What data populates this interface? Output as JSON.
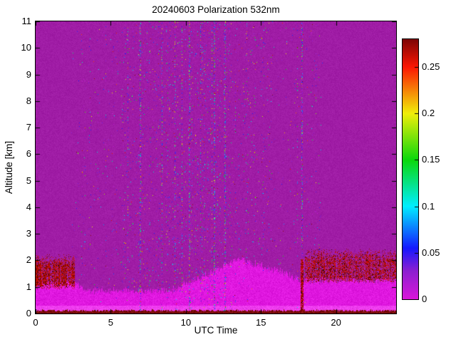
{
  "chart_data": {
    "type": "heatmap",
    "title": "20240603 Polarization 532nm",
    "xlabel": "UTC Time",
    "ylabel": "Altitude [km]",
    "xlim": [
      0,
      24
    ],
    "ylim": [
      0,
      11
    ],
    "xticks": [
      0,
      5,
      10,
      15,
      20
    ],
    "yticks": [
      0,
      1,
      2,
      3,
      4,
      5,
      6,
      7,
      8,
      9,
      10,
      11
    ],
    "grid": false,
    "colorbar": {
      "position": "right",
      "range": [
        0,
        0.28
      ],
      "ticks": [
        0,
        0.05,
        0.1,
        0.15,
        0.2,
        0.25
      ],
      "stops": [
        {
          "v": 0.0,
          "color": "#d916d9"
        },
        {
          "v": 0.03,
          "color": "#8e1fd0"
        },
        {
          "v": 0.055,
          "color": "#1518ff"
        },
        {
          "v": 0.1,
          "color": "#00eeff"
        },
        {
          "v": 0.15,
          "color": "#0bd80b"
        },
        {
          "v": 0.2,
          "color": "#f0ee0a"
        },
        {
          "v": 0.25,
          "color": "#fb1703"
        },
        {
          "v": 0.28,
          "color": "#7c0404"
        }
      ]
    },
    "features": {
      "background_color": "#a01da6",
      "surface_layer": {
        "color": "#e018e0",
        "bright_color": "#ef3def",
        "night_top_km": 1.15,
        "morning_top_km": 0.85,
        "day_rise_start_utc": 9,
        "day_peak_utc": 13.5,
        "day_peak_top_km": 2.05,
        "late_top_km": 1.6,
        "late_utc": 16.2,
        "evening_top_km": 1.25,
        "evening_utc": 17.6
      },
      "ground_return": {
        "color": "#7a0b06",
        "top_km": 0.1
      },
      "depol_layers": [
        {
          "t_range": [
            0,
            2.6
          ],
          "alt_range": [
            1.0,
            1.95
          ],
          "density": 0.78
        },
        {
          "t_range": [
            17.9,
            24
          ],
          "alt_range": [
            1.25,
            2.15
          ],
          "density": 0.6
        }
      ],
      "dark_column": {
        "t_range": [
          17.6,
          17.82
        ],
        "alt_top": 2.05
      },
      "dense_noise_columns": [
        6.95,
        10.22,
        11.9,
        12.6,
        17.7
      ],
      "noise": {
        "t_range": [
          2.2,
          19.3
        ],
        "peak_utc": 10.3,
        "width": 4.8,
        "base": 0.15
      }
    }
  }
}
